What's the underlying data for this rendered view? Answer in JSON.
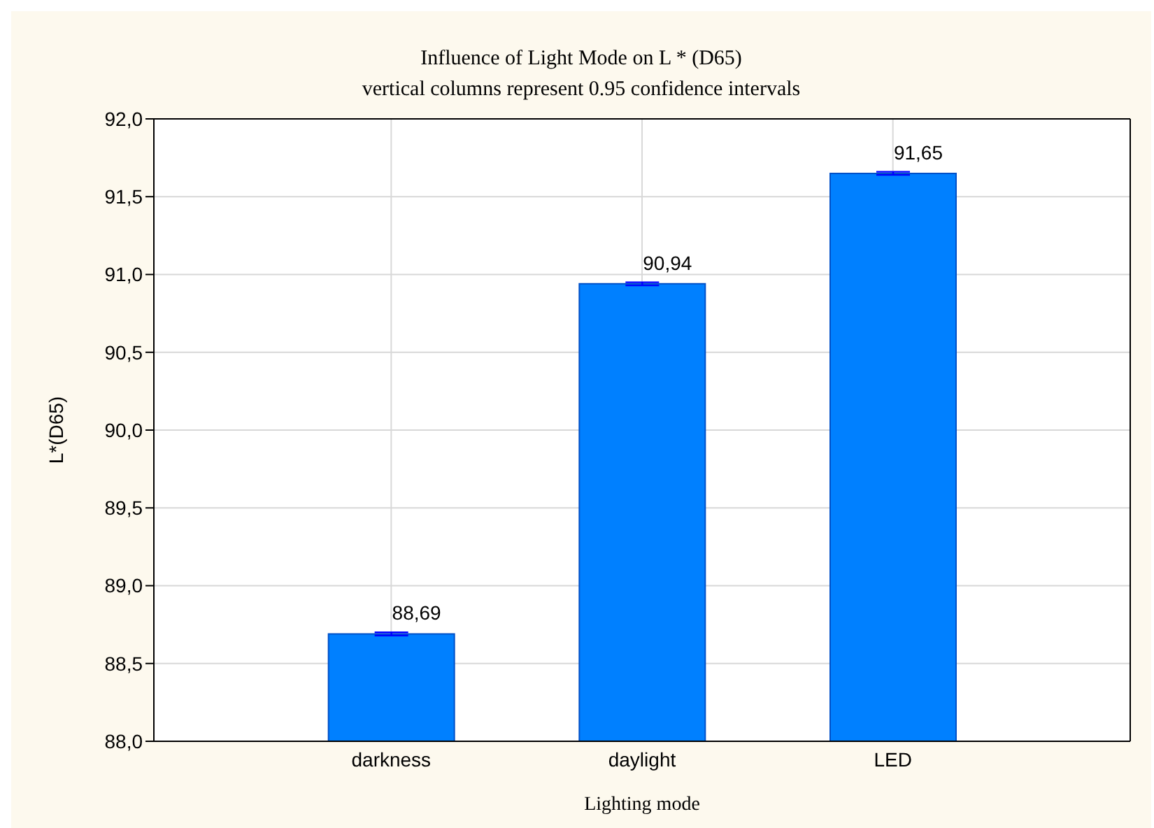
{
  "chart_data": {
    "type": "bar",
    "title": "Influence of Light Mode on L * (D65)",
    "subtitle": "vertical columns represent 0.95 confidence intervals",
    "xlabel": "Lighting mode",
    "ylabel": "L*(D65)",
    "categories": [
      "darkness",
      "daylight",
      "LED"
    ],
    "values": [
      88.69,
      90.94,
      91.65
    ],
    "value_labels": [
      "88,69",
      "90,94",
      "91,65"
    ],
    "errors": [
      0.01,
      0.01,
      0.01
    ],
    "color": "#0080ff",
    "ylim": [
      88,
      92
    ],
    "yticks": [
      {
        "value": 88,
        "label": "88,0"
      },
      {
        "value": 88.5,
        "label": "88,5"
      },
      {
        "value": 89,
        "label": "89,0"
      },
      {
        "value": 89.5,
        "label": "89,5"
      },
      {
        "value": 90,
        "label": "90,0"
      },
      {
        "value": 90.5,
        "label": "90,5"
      },
      {
        "value": 91,
        "label": "91,0"
      },
      {
        "value": 91.5,
        "label": "91,5"
      },
      {
        "value": 92,
        "label": "92,0"
      }
    ],
    "grid": true
  }
}
